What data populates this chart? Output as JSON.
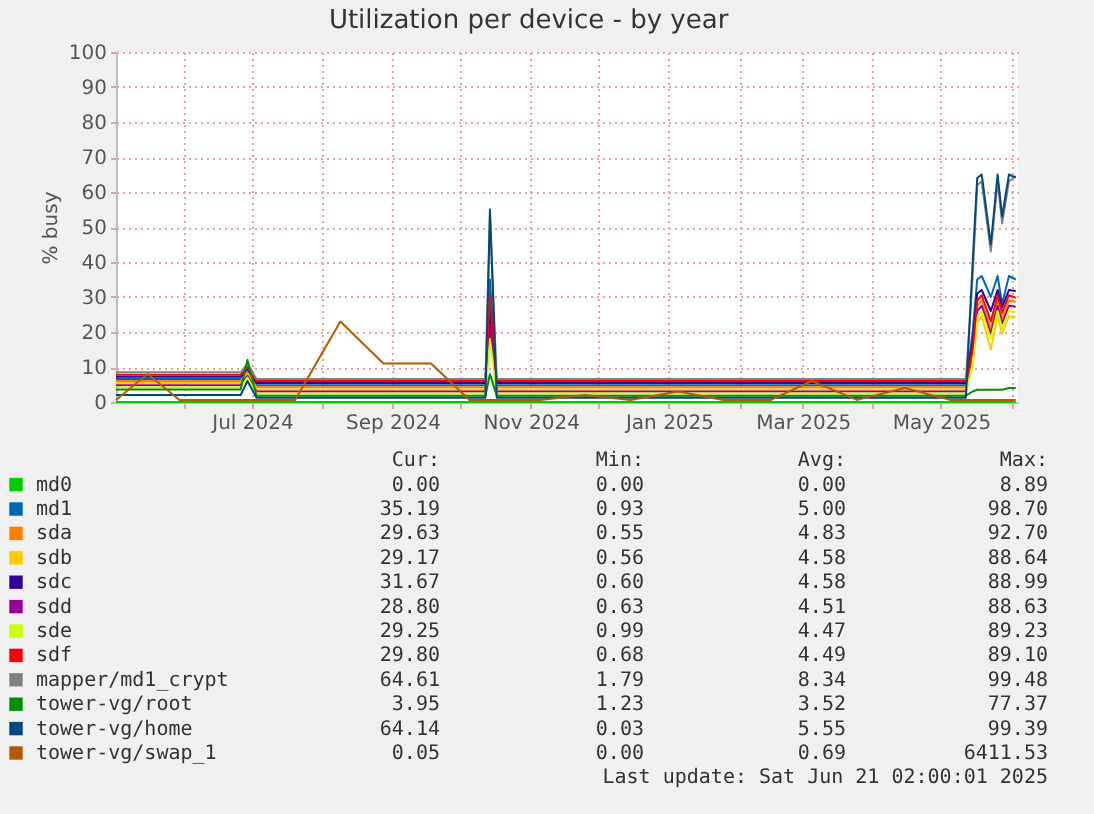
{
  "chart_data": {
    "type": "line",
    "title": "Utilization per device - by year",
    "ylabel": "% busy",
    "x": [
      "2024-05-02",
      "2024-05-16",
      "2024-05-30",
      "2024-06-13",
      "2024-06-26",
      "2024-06-29",
      "2024-07-03",
      "2024-07-20",
      "2024-08-09",
      "2024-08-28",
      "2024-09-18",
      "2024-10-05",
      "2024-10-12",
      "2024-10-14",
      "2024-10-17",
      "2024-11-05",
      "2024-11-25",
      "2024-12-15",
      "2025-01-05",
      "2025-01-25",
      "2025-02-15",
      "2025-03-05",
      "2025-03-25",
      "2025-04-15",
      "2025-05-05",
      "2025-05-12",
      "2025-05-15",
      "2025-05-17",
      "2025-05-19",
      "2025-05-23",
      "2025-05-26",
      "2025-05-28",
      "2025-05-31",
      "2025-06-03"
    ],
    "xlim": [
      "2024-05-02",
      "2025-06-04"
    ],
    "xticks": [
      {
        "value": "2024-06-01",
        "label": null
      },
      {
        "value": "2024-07-01",
        "label": "Jul 2024"
      },
      {
        "value": "2024-08-01",
        "label": null
      },
      {
        "value": "2024-09-01",
        "label": "Sep 2024"
      },
      {
        "value": "2024-10-01",
        "label": null
      },
      {
        "value": "2024-11-01",
        "label": "Nov 2024"
      },
      {
        "value": "2024-12-01",
        "label": null
      },
      {
        "value": "2025-01-01",
        "label": "Jan 2025"
      },
      {
        "value": "2025-02-01",
        "label": null
      },
      {
        "value": "2025-03-01",
        "label": "Mar 2025"
      },
      {
        "value": "2025-04-01",
        "label": null
      },
      {
        "value": "2025-05-01",
        "label": "May 2025"
      },
      {
        "value": "2025-06-01",
        "label": null
      }
    ],
    "ylim": [
      0,
      100
    ],
    "yticks": [
      0,
      10,
      20,
      30,
      40,
      50,
      60,
      70,
      80,
      90,
      100
    ],
    "grid": true,
    "legend": "bottom",
    "series": [
      {
        "name": "md0",
        "color": "#00cc00",
        "values": [
          0,
          0,
          0,
          0,
          0,
          0,
          0,
          0,
          0,
          0,
          0,
          0,
          0,
          0,
          0,
          0,
          0,
          0,
          0,
          0,
          0,
          0,
          0,
          0,
          0,
          0,
          0,
          0,
          0,
          0,
          0,
          0,
          0,
          0
        ]
      },
      {
        "name": "md1",
        "color": "#0066b3",
        "values": [
          6.6,
          6.6,
          6.6,
          6.6,
          6.6,
          8.5,
          4.8,
          4.8,
          4.8,
          4.8,
          4.8,
          4.8,
          4.8,
          35,
          4.8,
          4.8,
          4.8,
          4.8,
          4.8,
          4.8,
          4.8,
          4.8,
          4.8,
          4.8,
          4.8,
          4.8,
          20,
          35,
          36,
          30,
          36,
          28,
          36,
          35
        ]
      },
      {
        "name": "sda",
        "color": "#ff8000",
        "values": [
          6,
          6,
          6,
          6,
          6,
          9,
          4.2,
          4.2,
          4.2,
          4.2,
          4.2,
          4.2,
          4.2,
          24,
          4.2,
          4.2,
          4.2,
          4.2,
          4.2,
          4.2,
          4.2,
          4.2,
          4.2,
          4.2,
          4.2,
          4.2,
          13,
          27.5,
          29,
          21,
          29,
          24,
          29,
          28.6
        ]
      },
      {
        "name": "sdb",
        "color": "#ffcc00",
        "values": [
          5.4,
          5.4,
          5.4,
          5.4,
          5.4,
          8,
          3.6,
          3.6,
          3.6,
          3.6,
          3.6,
          3.6,
          3.6,
          20,
          3.6,
          3.6,
          3.6,
          3.6,
          3.6,
          3.6,
          3.6,
          3.6,
          3.6,
          3.6,
          3.6,
          3.6,
          10,
          23,
          24.5,
          15,
          24.5,
          19.5,
          24.5,
          24.3
        ]
      },
      {
        "name": "sdc",
        "color": "#330099",
        "values": [
          7.2,
          7.2,
          7.2,
          7.2,
          7.2,
          9.5,
          5.4,
          5.4,
          5.4,
          5.4,
          5.4,
          5.4,
          5.4,
          26,
          5.4,
          5.4,
          5.4,
          5.4,
          5.4,
          5.4,
          5.4,
          5.4,
          5.4,
          5.4,
          5.4,
          5.4,
          17,
          31,
          32,
          26,
          32,
          27,
          32,
          31.7
        ]
      },
      {
        "name": "sdd",
        "color": "#990099",
        "values": [
          4.8,
          4.8,
          4.8,
          4.8,
          4.8,
          7.5,
          3,
          3,
          3,
          3,
          3,
          3,
          3,
          22,
          3,
          3,
          3,
          3,
          3,
          3,
          3,
          3,
          3,
          3,
          3,
          3,
          12,
          26,
          27.5,
          19.5,
          27.5,
          22.5,
          27.5,
          27.2
        ]
      },
      {
        "name": "sde",
        "color": "#ccff00",
        "values": [
          4.2,
          4.2,
          4.2,
          4.2,
          4.2,
          7,
          2.4,
          2.4,
          2.4,
          2.4,
          2.4,
          2.4,
          2.4,
          18,
          2.4,
          2.4,
          2.4,
          2.4,
          2.4,
          2.4,
          2.4,
          2.4,
          2.4,
          2.4,
          2.4,
          2.4,
          11,
          24.5,
          26,
          18,
          26,
          21,
          26,
          25.8
        ]
      },
      {
        "name": "sdf",
        "color": "#ff0000",
        "values": [
          7.8,
          7.8,
          7.8,
          7.8,
          7.8,
          10,
          6,
          6,
          6,
          6,
          6,
          6,
          6,
          30,
          6,
          6,
          6,
          6,
          6,
          6,
          6,
          6,
          6,
          6,
          6,
          6,
          15,
          29,
          30.5,
          23,
          30.5,
          25.5,
          30.5,
          29.8
        ]
      },
      {
        "name": "mapper/md1_crypt",
        "color": "#808080",
        "values": [
          8.5,
          8.5,
          8.5,
          8.5,
          8.5,
          11,
          6.6,
          6.6,
          6.6,
          6.6,
          6.6,
          6.6,
          6.6,
          53,
          6.6,
          6.6,
          6.6,
          6.6,
          6.6,
          6.6,
          6.6,
          6.6,
          6.6,
          6.6,
          6.6,
          6.6,
          36,
          62,
          63,
          43,
          63,
          51,
          63,
          64.6
        ]
      },
      {
        "name": "tower-vg/root",
        "color": "#008f00",
        "values": [
          3.6,
          3.6,
          3.6,
          3.6,
          3.6,
          12,
          1.8,
          1.8,
          1.8,
          1.8,
          1.8,
          1.8,
          1.8,
          8,
          1.8,
          1.8,
          1.8,
          1.8,
          1.8,
          1.8,
          1.8,
          1.8,
          1.8,
          1.8,
          1.8,
          1.8,
          3,
          3.5,
          3.5,
          3.5,
          3.5,
          3.5,
          4,
          4
        ]
      },
      {
        "name": "tower-vg/home",
        "color": "#00487d",
        "values": [
          2,
          2,
          2,
          2,
          2,
          6,
          1.2,
          1.2,
          1.2,
          1.2,
          1.2,
          1.2,
          1.2,
          55,
          1.2,
          1.2,
          1.2,
          1.2,
          1.2,
          1.2,
          1.2,
          1.2,
          1.2,
          1.2,
          1.2,
          1.2,
          40,
          64,
          65,
          45,
          65,
          53,
          65,
          64.1
        ]
      },
      {
        "name": "tower-vg/swap_1",
        "color": "#b35a00",
        "values": [
          0.6,
          8,
          0.6,
          0.6,
          0.6,
          0.6,
          0.6,
          0.6,
          23,
          11,
          11,
          0.6,
          0.6,
          0.6,
          0.6,
          0.6,
          2,
          0.6,
          3,
          0.6,
          0.6,
          6,
          0.6,
          4,
          0.6,
          0.6,
          0.6,
          0.6,
          0.6,
          0.6,
          0.6,
          0.6,
          0.6,
          0.6
        ]
      }
    ],
    "annotations": [
      "Cur:",
      "Min:",
      "Avg:",
      "Max:",
      "0.00",
      "0.00",
      "0.00",
      "8.89",
      "35.19",
      "0.93",
      "5.00",
      "98.70",
      "29.63",
      "0.55",
      "4.83",
      "92.70",
      "29.17",
      "0.56",
      "4.58",
      "88.64",
      "31.67",
      "0.60",
      "4.58",
      "88.99",
      "28.80",
      "0.63",
      "4.51",
      "88.63",
      "29.25",
      "0.99",
      "4.47",
      "89.23",
      "29.80",
      "0.68",
      "4.49",
      "89.10",
      "64.61",
      "1.79",
      "8.34",
      "99.48",
      "3.95",
      "1.23",
      "3.52",
      "77.37",
      "64.14",
      "0.03",
      "5.55",
      "99.39",
      "0.05",
      "0.00",
      "0.69",
      "6411.53",
      "Last update: Sat Jun 21 02:00:01 2025"
    ]
  }
}
